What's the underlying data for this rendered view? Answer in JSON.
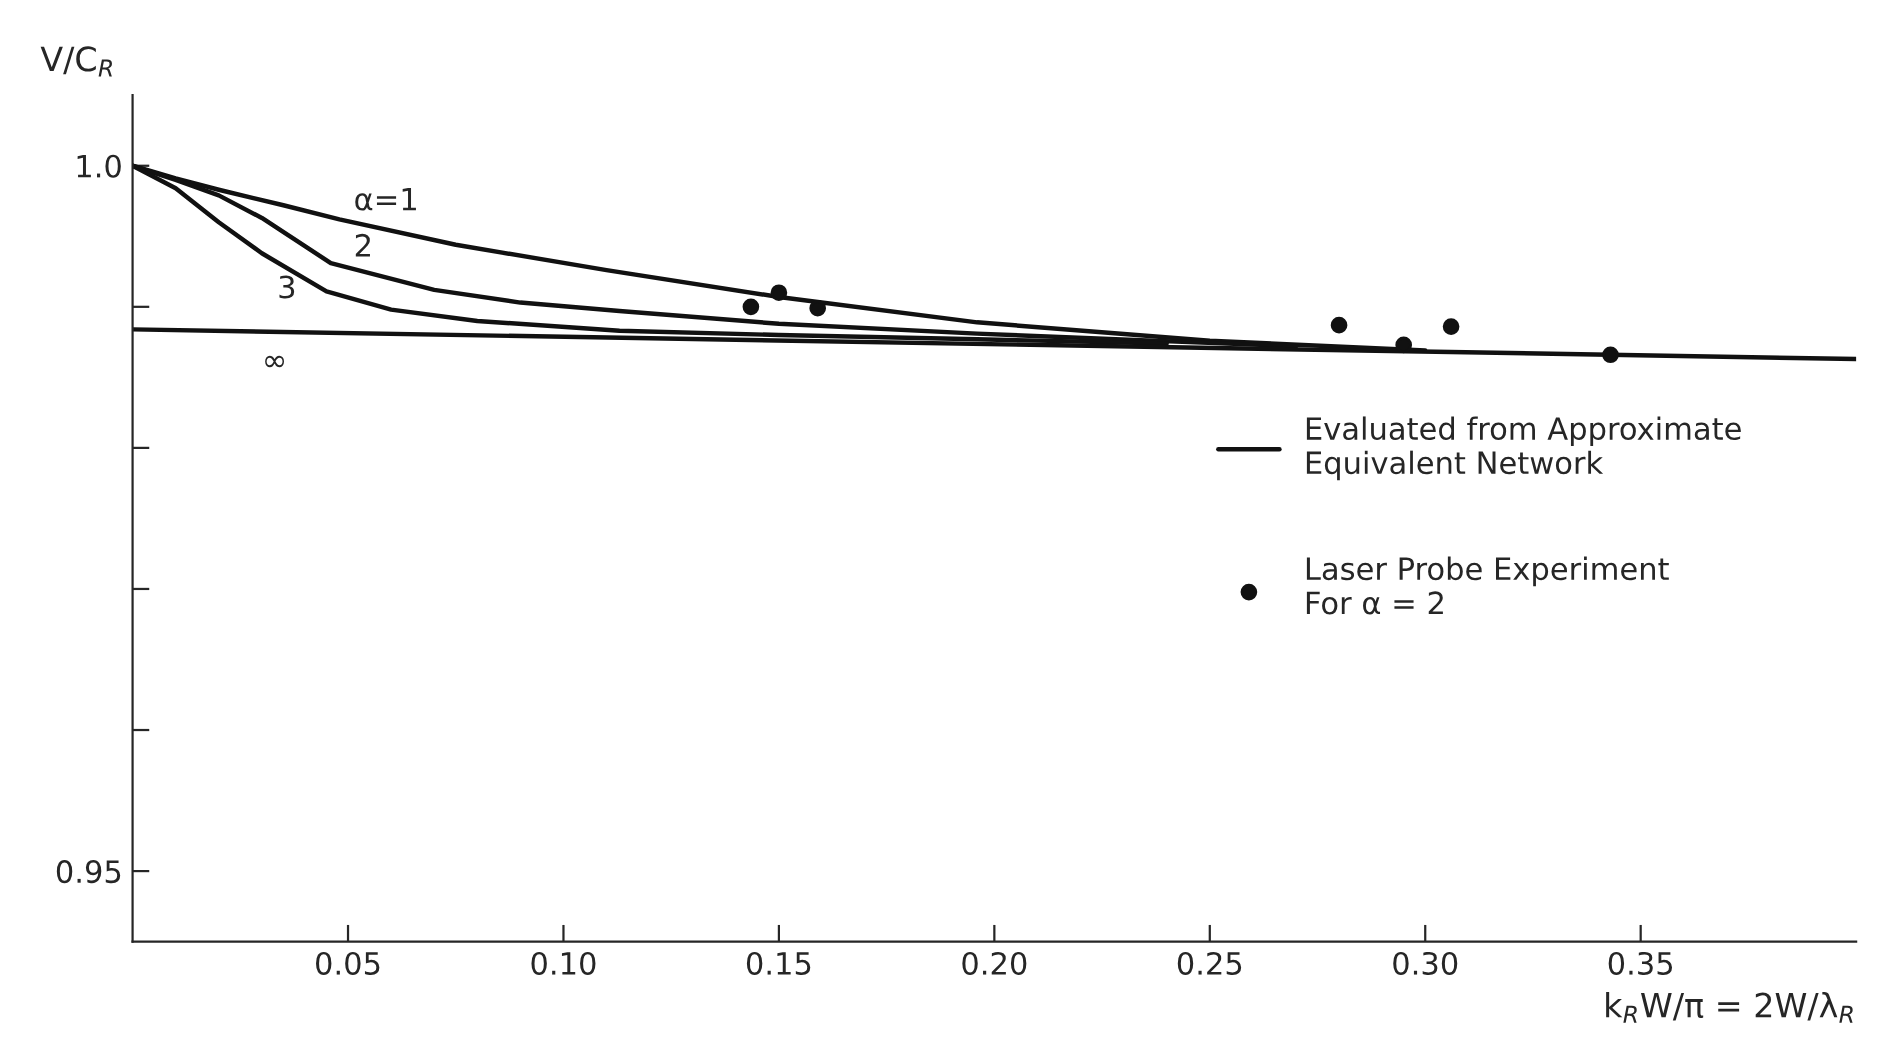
{
  "chart_data": {
    "type": "line",
    "xlabel": "k$_{R}$W/π = 2W/λ$_{R}$",
    "ylabel": "V/C$_{R}$",
    "xlim": [
      0,
      0.4
    ],
    "ylim": [
      0.945,
      1.005
    ],
    "xticks": [
      0.05,
      {
        "value": 0.1,
        "label": "0.10"
      },
      0.15,
      {
        "value": 0.2,
        "label": "0.20"
      },
      0.25,
      {
        "value": 0.3,
        "label": "0.30"
      },
      0.35
    ],
    "yticks": [
      0.95,
      {
        "value": 0.96,
        "label": null
      },
      {
        "value": 0.97,
        "label": null
      },
      {
        "value": 0.98,
        "label": null
      },
      {
        "value": 0.99,
        "label": null
      },
      {
        "value": 1.0,
        "label": "1.0"
      }
    ],
    "grid": false,
    "legend": "right",
    "marker": "none",
    "line_style": "solid",
    "series": [
      {
        "name": "α=1",
        "color": "#111111",
        "x": [
          0,
          0.01,
          0.02,
          0.035,
          0.048,
          0.075,
          0.11,
          0.15,
          0.196,
          0.25,
          0.3
        ],
        "values": [
          1.0,
          0.9991,
          0.9983,
          0.9972,
          0.9962,
          0.9944,
          0.9926,
          0.9907,
          0.9889,
          0.9876,
          0.9869
        ]
      },
      {
        "name": "2",
        "color": "#111111",
        "x": [
          0,
          0.01,
          0.02,
          0.03,
          0.046,
          0.07,
          0.09,
          0.113,
          0.15,
          0.196,
          0.27
        ],
        "values": [
          1.0,
          0.999,
          0.9979,
          0.9963,
          0.9931,
          0.9912,
          0.9903,
          0.9897,
          0.9888,
          0.9881,
          0.9872
        ]
      },
      {
        "name": "3",
        "color": "#111111",
        "x": [
          0,
          0.01,
          0.02,
          0.03,
          0.045,
          0.06,
          0.08,
          0.113,
          0.15,
          0.196,
          0.24
        ],
        "values": [
          1.0,
          0.9984,
          0.996,
          0.9938,
          0.9911,
          0.9898,
          0.989,
          0.9883,
          0.988,
          0.9877,
          0.9874
        ]
      },
      {
        "name": "∞",
        "color": "#111111",
        "x": [
          0,
          0.4
        ],
        "values": [
          0.9884,
          0.9863
        ]
      },
      {
        "name": "Laser Probe Experiment\nFor α = 2",
        "type": "scatter",
        "marker": "circle",
        "color": "#111111",
        "x": [
          0.1435,
          0.15,
          0.159,
          0.28,
          0.295,
          0.306,
          0.343
        ],
        "values": [
          0.99,
          0.991,
          0.9899,
          0.9887,
          0.9873,
          0.9886,
          0.9866
        ]
      }
    ],
    "annotations": [
      "Evaluated from Approximate\nEquivalent Network"
    ]
  }
}
